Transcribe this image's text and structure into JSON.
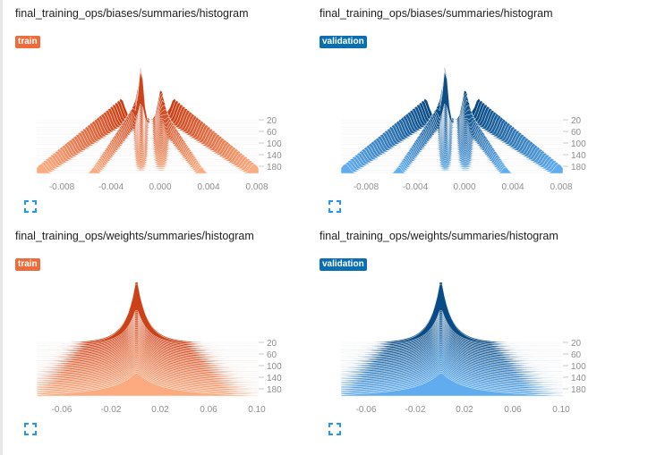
{
  "cards": [
    {
      "title": "final_training_ops/biases/summaries/histogram",
      "run": "train",
      "run_color": "#ef6c3a",
      "chart_data": {
        "type": "area",
        "x_ticks": [
          "-0.008",
          "-0.004",
          "0.000",
          "0.004",
          "0.008"
        ],
        "y_ticks": [
          "20",
          "60",
          "100",
          "140",
          "180"
        ]
      }
    },
    {
      "title": "final_training_ops/biases/summaries/histogram",
      "run": "validation",
      "run_color": "#0a6fb0",
      "chart_data": {
        "type": "area",
        "x_ticks": [
          "-0.008",
          "-0.004",
          "0.000",
          "0.004",
          "0.008"
        ],
        "y_ticks": [
          "20",
          "60",
          "100",
          "140",
          "180"
        ]
      }
    },
    {
      "title": "final_training_ops/weights/summaries/histogram",
      "run": "train",
      "run_color": "#ef6c3a",
      "chart_data": {
        "type": "area",
        "x_ticks": [
          "-0.06",
          "-0.02",
          "0.02",
          "0.06",
          "0.10"
        ],
        "y_ticks": [
          "20",
          "60",
          "100",
          "140",
          "180"
        ]
      }
    },
    {
      "title": "final_training_ops/weights/summaries/histogram",
      "run": "validation",
      "run_color": "#0a6fb0",
      "chart_data": {
        "type": "area",
        "x_ticks": [
          "-0.06",
          "-0.02",
          "0.02",
          "0.06",
          "0.10"
        ],
        "y_ticks": [
          "20",
          "60",
          "100",
          "140",
          "180"
        ]
      }
    }
  ],
  "icons": {
    "expand": "fullscreen-icon"
  }
}
